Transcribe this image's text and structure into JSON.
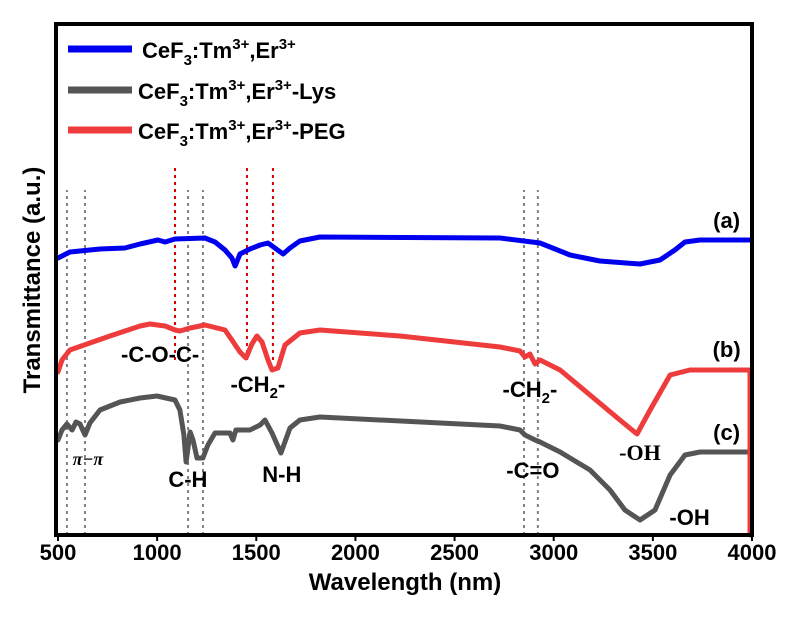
{
  "chart_data": {
    "type": "line",
    "title": "",
    "xlabel": "Wavelength (nm)",
    "ylabel": "Transmittance (a.u.)",
    "xlim": [
      500,
      4000
    ],
    "ylim": [
      0,
      102.2
    ],
    "xticks": [
      500,
      1000,
      1500,
      2000,
      2500,
      3000,
      3500,
      4000
    ],
    "grid": false,
    "legend_position": "top-left",
    "series": [
      {
        "name": "CeF3:Tm3+,Er3+",
        "label_parts": [
          [
            "CeF",
            ""
          ],
          [
            "3",
            "sub"
          ],
          [
            ":Tm",
            ""
          ],
          [
            "3+",
            "sup"
          ],
          [
            ",Er",
            ""
          ],
          [
            "3+",
            "sup"
          ]
        ],
        "color": "#0000ee",
        "tag": "(a)",
        "points": [
          [
            500,
            55.4
          ],
          [
            560,
            56.6
          ],
          [
            712,
            57.2
          ],
          [
            838,
            57.4
          ],
          [
            914,
            58.2
          ],
          [
            1004,
            59
          ],
          [
            1040,
            58.6
          ],
          [
            1090,
            59.2
          ],
          [
            1241,
            59.4
          ],
          [
            1292,
            58.6
          ],
          [
            1342,
            57
          ],
          [
            1377,
            55.4
          ],
          [
            1393,
            53.8
          ],
          [
            1418,
            56.2
          ],
          [
            1468,
            57.2
          ],
          [
            1519,
            58
          ],
          [
            1559,
            58.4
          ],
          [
            1594,
            57.4
          ],
          [
            1635,
            56.2
          ],
          [
            1670,
            57.4
          ],
          [
            1720,
            58.8
          ],
          [
            1821,
            59.6
          ],
          [
            2729,
            59.4
          ],
          [
            2931,
            58.4
          ],
          [
            3082,
            56
          ],
          [
            3233,
            54.8
          ],
          [
            3435,
            54.2
          ],
          [
            3536,
            55
          ],
          [
            3611,
            57
          ],
          [
            3662,
            58.6
          ],
          [
            3738,
            59
          ],
          [
            3990,
            59
          ]
        ]
      },
      {
        "name": "CeF3:Tm3+,Er3+-Lys",
        "label_parts": [
          [
            "CeF",
            ""
          ],
          [
            "3",
            "sub"
          ],
          [
            ":Tm",
            ""
          ],
          [
            "3+",
            "sup"
          ],
          [
            ",Er",
            ""
          ],
          [
            "3+",
            "sup"
          ],
          [
            "-Lys",
            ""
          ]
        ],
        "color": "#555555",
        "tag": "(c)",
        "points": [
          [
            500,
            19
          ],
          [
            520,
            21
          ],
          [
            545,
            22.2
          ],
          [
            571,
            21
          ],
          [
            591,
            22.6
          ],
          [
            611,
            22.2
          ],
          [
            636,
            20
          ],
          [
            661,
            22.4
          ],
          [
            712,
            25
          ],
          [
            813,
            26.6
          ],
          [
            914,
            27.4
          ],
          [
            999,
            27.8
          ],
          [
            1090,
            27
          ],
          [
            1115,
            25
          ],
          [
            1135,
            20
          ],
          [
            1146,
            14.6
          ],
          [
            1166,
            20.6
          ],
          [
            1181,
            19
          ],
          [
            1201,
            15.4
          ],
          [
            1231,
            15.4
          ],
          [
            1256,
            18
          ],
          [
            1292,
            20.4
          ],
          [
            1367,
            20.4
          ],
          [
            1382,
            19
          ],
          [
            1397,
            21
          ],
          [
            1468,
            21
          ],
          [
            1519,
            22
          ],
          [
            1544,
            23
          ],
          [
            1579,
            20.4
          ],
          [
            1624,
            16.4
          ],
          [
            1670,
            21.4
          ],
          [
            1720,
            23
          ],
          [
            1821,
            23.6
          ],
          [
            2729,
            21.8
          ],
          [
            2830,
            21
          ],
          [
            2855,
            20
          ],
          [
            2906,
            19
          ],
          [
            2931,
            18.6
          ],
          [
            3032,
            16.6
          ],
          [
            3183,
            13
          ],
          [
            3284,
            9
          ],
          [
            3359,
            5
          ],
          [
            3435,
            3
          ],
          [
            3511,
            5
          ],
          [
            3587,
            12
          ],
          [
            3662,
            16
          ],
          [
            3738,
            16.6
          ],
          [
            3990,
            16.6
          ]
        ]
      },
      {
        "name": "CeF3:Tm3+,Er3+-PEG",
        "label_parts": [
          [
            "CeF",
            ""
          ],
          [
            "3",
            "sub"
          ],
          [
            ":Tm",
            ""
          ],
          [
            "3+",
            "sup"
          ],
          [
            ",Er",
            ""
          ],
          [
            "3+",
            "sup"
          ],
          [
            "-PEG",
            ""
          ]
        ],
        "color": "#ee3b3b",
        "tag": "(b)",
        "points": [
          [
            500,
            32.6
          ],
          [
            520,
            35
          ],
          [
            560,
            37
          ],
          [
            661,
            38.4
          ],
          [
            762,
            39.8
          ],
          [
            914,
            41.8
          ],
          [
            964,
            42.2
          ],
          [
            1040,
            41.8
          ],
          [
            1090,
            41
          ],
          [
            1115,
            40.8
          ],
          [
            1166,
            41.4
          ],
          [
            1241,
            42
          ],
          [
            1342,
            41
          ],
          [
            1377,
            39
          ],
          [
            1418,
            36.6
          ],
          [
            1448,
            35.4
          ],
          [
            1478,
            38.2
          ],
          [
            1503,
            39.8
          ],
          [
            1529,
            38.6
          ],
          [
            1559,
            35
          ],
          [
            1579,
            33
          ],
          [
            1609,
            33.4
          ],
          [
            1645,
            38
          ],
          [
            1720,
            40.4
          ],
          [
            1821,
            41
          ],
          [
            2225,
            39.8
          ],
          [
            2729,
            37.6
          ],
          [
            2830,
            36.8
          ],
          [
            2855,
            35.6
          ],
          [
            2880,
            36.2
          ],
          [
            2906,
            34.2
          ],
          [
            2931,
            35
          ],
          [
            3032,
            33
          ],
          [
            3183,
            28
          ],
          [
            3334,
            23
          ],
          [
            3420,
            20.2
          ],
          [
            3486,
            25
          ],
          [
            3587,
            32
          ],
          [
            3687,
            33
          ],
          [
            3990,
            33
          ],
          [
            3990,
            0
          ]
        ]
      }
    ],
    "reference_lines": [
      {
        "x": 545,
        "color": "#808080",
        "from": 0,
        "to": 69
      },
      {
        "x": 636,
        "color": "#808080",
        "from": 0,
        "to": 69
      },
      {
        "x": 1156,
        "color": "#808080",
        "from": 0,
        "to": 69
      },
      {
        "x": 1231,
        "color": "#808080",
        "from": 0,
        "to": 69
      },
      {
        "x": 1090,
        "color": "#dd0000",
        "from": 35,
        "to": 74
      },
      {
        "x": 1453,
        "color": "#dd0000",
        "from": 35,
        "to": 74
      },
      {
        "x": 1584,
        "color": "#dd0000",
        "from": 35,
        "to": 74
      },
      {
        "x": 2850,
        "color": "#808080",
        "from": 0,
        "to": 69
      },
      {
        "x": 2920,
        "color": "#808080",
        "from": 0,
        "to": 69
      }
    ],
    "annotations": [
      {
        "text": "(a)",
        "x": 3872,
        "y": 61.4
      },
      {
        "text": "(b)",
        "x": 3872,
        "y": 35.6
      },
      {
        "text": "(c)",
        "x": 3872,
        "y": 19
      },
      {
        "text": "-C-O-C-",
        "x": 1015,
        "y": 34.6
      },
      {
        "text": "-CH",
        "sub": "2",
        "tail": "-",
        "x": 1508,
        "y": 28.6
      },
      {
        "text": "π−π",
        "x": 651,
        "y": 14,
        "style": "serif-italic"
      },
      {
        "text": "C-H",
        "x": 1155,
        "y": 9.6
      },
      {
        "text": "N-H",
        "x": 1629,
        "y": 10.6
      },
      {
        "text": "-CH",
        "sub": "2",
        "tail": "-",
        "x": 2880,
        "y": 27.6
      },
      {
        "text": "-OH",
        "x": 3435,
        "y": 15,
        "style": "serif"
      },
      {
        "text": "-C=O",
        "x": 2895,
        "y": 11.4
      },
      {
        "text": "-OH",
        "x": 3685,
        "y": 2
      }
    ]
  }
}
